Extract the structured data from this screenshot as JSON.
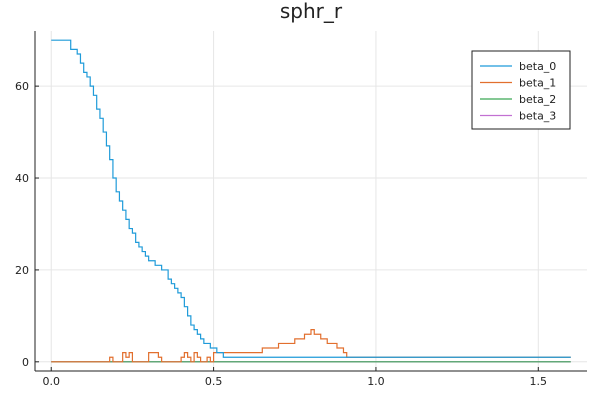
{
  "chart_data": {
    "type": "line",
    "title": "sphr_r",
    "xlabel": "",
    "ylabel": "",
    "xlim": [
      -0.05,
      1.65
    ],
    "ylim": [
      -2,
      72
    ],
    "xticks": [
      0.0,
      0.5,
      1.0,
      1.5
    ],
    "xtick_labels": [
      "0.0",
      "0.5",
      "1.0",
      "1.5"
    ],
    "yticks": [
      0,
      20,
      40,
      60
    ],
    "ytick_labels": [
      "0",
      "20",
      "40",
      "60"
    ],
    "grid": true,
    "legend_position": "top-right",
    "series": [
      {
        "name": "beta_0",
        "color": "#1f9bd9",
        "step": true,
        "x": [
          0.0,
          0.06,
          0.08,
          0.09,
          0.1,
          0.11,
          0.12,
          0.13,
          0.14,
          0.15,
          0.16,
          0.17,
          0.18,
          0.19,
          0.2,
          0.21,
          0.22,
          0.23,
          0.24,
          0.25,
          0.26,
          0.27,
          0.28,
          0.29,
          0.3,
          0.32,
          0.34,
          0.36,
          0.37,
          0.38,
          0.39,
          0.4,
          0.41,
          0.42,
          0.43,
          0.44,
          0.45,
          0.46,
          0.47,
          0.49,
          0.51,
          0.53,
          0.55,
          0.6,
          0.7,
          0.8,
          0.9,
          1.0,
          1.2,
          1.4,
          1.6
        ],
        "y": [
          70,
          68,
          67,
          65,
          63,
          62,
          60,
          58,
          55,
          53,
          50,
          47,
          44,
          40,
          37,
          35,
          33,
          31,
          29,
          28,
          26,
          25,
          24,
          23,
          22,
          21,
          20,
          18,
          17,
          16,
          15,
          14,
          12,
          10,
          8,
          7,
          6,
          5,
          4,
          3,
          2,
          1,
          1,
          1,
          1,
          1,
          1,
          1,
          1,
          1,
          1
        ]
      },
      {
        "name": "beta_1",
        "color": "#e26f2e",
        "step": true,
        "x": [
          0.0,
          0.18,
          0.19,
          0.2,
          0.22,
          0.23,
          0.24,
          0.25,
          0.3,
          0.31,
          0.33,
          0.34,
          0.35,
          0.4,
          0.41,
          0.42,
          0.43,
          0.44,
          0.45,
          0.46,
          0.48,
          0.49,
          0.5,
          0.52,
          0.55,
          0.6,
          0.65,
          0.7,
          0.75,
          0.78,
          0.8,
          0.81,
          0.82,
          0.83,
          0.85,
          0.88,
          0.9,
          0.91,
          1.0,
          1.05,
          1.2,
          1.4,
          1.6
        ],
        "y": [
          0,
          1,
          0,
          0,
          2,
          1,
          2,
          0,
          2,
          2,
          1,
          0,
          0,
          1,
          2,
          1,
          0,
          2,
          1,
          0,
          1,
          0,
          2,
          2,
          2,
          2,
          3,
          4,
          5,
          6,
          7,
          6,
          6,
          5,
          4,
          3,
          2,
          1,
          1,
          1,
          1,
          1,
          1
        ]
      },
      {
        "name": "beta_2",
        "color": "#3aa655",
        "step": true,
        "x": [
          0.0,
          0.4,
          0.45,
          1.0,
          1.05,
          1.3,
          1.35,
          1.6
        ],
        "y": [
          0,
          0,
          0,
          0,
          0,
          0,
          0,
          0
        ]
      },
      {
        "name": "beta_3",
        "color": "#c271d2",
        "step": true,
        "x": [
          0.0,
          0.5,
          1.0,
          1.39,
          1.4,
          1.6
        ],
        "y": [
          0,
          0,
          0,
          0,
          0,
          0
        ]
      }
    ]
  }
}
